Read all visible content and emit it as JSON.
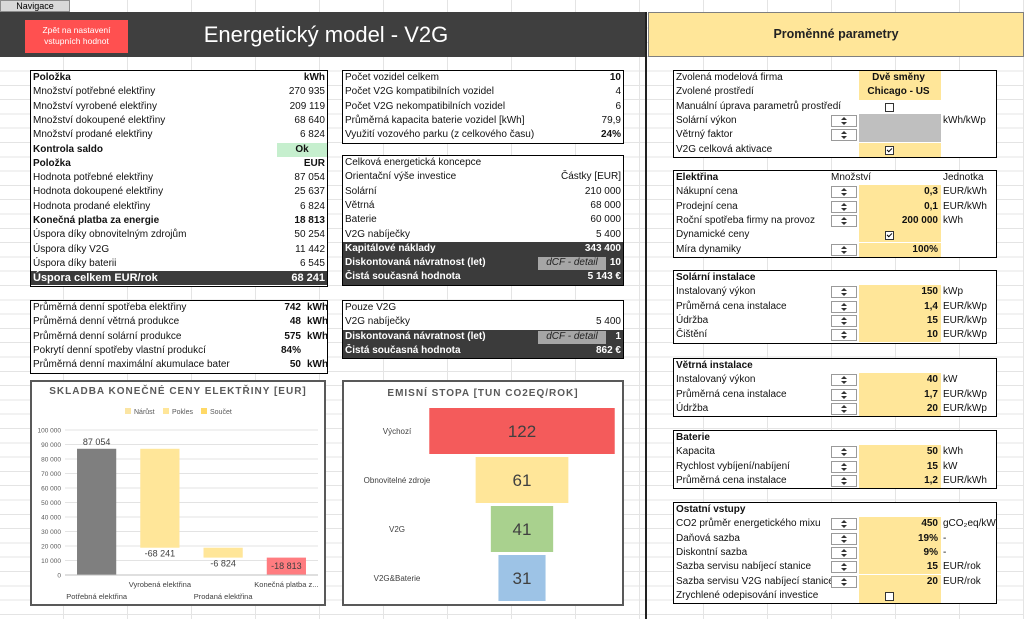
{
  "navigation": "Navigace",
  "header": {
    "back_button": "Zpět na nastavení vstupních hodnot",
    "title": "Energetický model - V2G"
  },
  "energy_table": [
    [
      "Položka",
      "kWh"
    ],
    [
      "Množství potřebné elektřiny",
      "270 935"
    ],
    [
      "Množství vyrobené elektřiny",
      "209 119"
    ],
    [
      "Množství dokoupené elektřiny",
      "68 640"
    ],
    [
      "Množství prodané elektřiny",
      "6 824"
    ],
    [
      "Kontrola saldo",
      "Ok"
    ],
    [
      "Položka",
      "EUR"
    ],
    [
      "Hodnota potřebné elektřiny",
      "87 054"
    ],
    [
      "Hodnota dokoupené elektřiny",
      "25 637"
    ],
    [
      "Hodnota prodané elektřiny",
      "6 824"
    ],
    [
      "Konečná platba za energie",
      "18 813"
    ],
    [
      "Úspora díky obnovitelným zdrojům",
      "50 254"
    ],
    [
      "Úspora díky V2G",
      "11 442"
    ],
    [
      "Úspora díky baterii",
      "6 545"
    ],
    [
      "Úspora celkem EUR/rok",
      "68 241"
    ]
  ],
  "fleet_table": [
    [
      "Počet vozidel celkem",
      "10"
    ],
    [
      "Počet V2G kompatibilních vozidel",
      "4"
    ],
    [
      "Počet V2G nekompatibilních vozidel",
      "6"
    ],
    [
      "Průměrná kapacita baterie vozidel [kWh]",
      "79,9"
    ],
    [
      "Využití vozového parku (z celkového času)",
      "24%"
    ]
  ],
  "investment_table": [
    [
      "Celková energetická koncepce"
    ],
    [
      "Orientační výše investice",
      "Částky [EUR]"
    ],
    [
      "Solární",
      "210 000"
    ],
    [
      "Větrná",
      "68 000"
    ],
    [
      "Baterie",
      "60 000"
    ],
    [
      "V2G nabíječky",
      "5 400"
    ],
    [
      "Kapitálové náklady",
      "343 400"
    ],
    [
      "Diskontovaná návratnost (let)",
      "dCF - detail",
      "10"
    ],
    [
      "Čistá současná hodnota",
      "5 143 €"
    ]
  ],
  "daily_table": [
    [
      "Průměrná denní spotřeba elektřiny",
      "742",
      "kWh"
    ],
    [
      "Průměrná denní větrná produkce",
      "48",
      "kWh"
    ],
    [
      "Průměrná denní solární produkce",
      "575",
      "kWh"
    ],
    [
      "Pokrytí denní spotřeby vlastní produkcí",
      "84%"
    ],
    [
      "Průměrná denní maximální akumulace bater",
      "50",
      "kWh"
    ]
  ],
  "v2g_table": [
    [
      "Pouze V2G"
    ],
    [
      "V2G nabíječky",
      "5 400"
    ],
    [
      "Diskontovaná návratnost (let)",
      "dCF - detail",
      "1"
    ],
    [
      "Čistá současná hodnota",
      "862 €"
    ]
  ],
  "chart_data": [
    {
      "type": "waterfall",
      "title": "SKLADBA KONEČNÉ CENY ELEKTŘINY [EUR]",
      "legend": [
        {
          "name": "Nárůst",
          "color": "#fbe5a3"
        },
        {
          "name": "Pokles",
          "color": "#ffe699"
        },
        {
          "name": "Součet",
          "color": "#ffd966"
        }
      ],
      "categories": [
        "Potřebná elektřina",
        "Vyrobená elektřina",
        "Prodaná elektřina",
        "Konečná platba z..."
      ],
      "values": [
        87054,
        -68241,
        -6824,
        -18813
      ],
      "value_labels": [
        "87 054",
        "-68 241",
        "-6 824",
        "-18 813"
      ],
      "colors": [
        "#7f7f7f",
        "#ffe699",
        "#ffe699",
        "#ff7c80"
      ],
      "ylim": [
        0,
        100000
      ],
      "yticks": [
        0,
        {
          "value": 10000,
          "label": "10 000"
        },
        {
          "value": 20000,
          "label": "20 000"
        },
        {
          "value": 30000,
          "label": "30 000"
        },
        {
          "value": 40000,
          "label": "40 000"
        },
        {
          "value": 50000,
          "label": "50 000"
        },
        {
          "value": 60000,
          "label": "60 000"
        },
        {
          "value": 70000,
          "label": "70 000"
        },
        {
          "value": 80000,
          "label": "80 000"
        },
        {
          "value": 90000,
          "label": "90 000"
        },
        {
          "value": 100000,
          "label": "100 000"
        }
      ],
      "grid": true
    },
    {
      "type": "funnel",
      "title": "EMISNÍ STOPA [TUN CO2EQ/ROK]",
      "categories": [
        "Výchozí",
        "Obnovitelné zdroje",
        "V2G",
        "V2G&Baterie"
      ],
      "values": [
        122,
        61,
        41,
        31
      ],
      "colors": [
        "#f45b5b",
        "#ffe699",
        "#a9d18e",
        "#9dc3e6"
      ]
    }
  ],
  "parameters": {
    "title": "Proměnné parametry",
    "sections": [
      {
        "rows": [
          {
            "label": "Zvolená modelová firma",
            "value": "Dvě směny"
          },
          {
            "label": "Zvolené prostředí",
            "value": "Chicago - US"
          },
          {
            "label": "Manuální úprava parametrů prostředí",
            "value": false
          },
          {
            "label": "Solární výkon",
            "unit": "kWh/kWp"
          },
          {
            "label": "Větrný faktor"
          },
          {
            "label": "V2G celková aktivace",
            "value": true
          }
        ]
      },
      {
        "title": "Elektřina",
        "columns": [
          "Množství",
          "Jednotka"
        ],
        "rows": [
          {
            "label": "Nákupní cena",
            "value": "0,3",
            "unit": "EUR/kWh"
          },
          {
            "label": "Prodejní cena",
            "value": "0,1",
            "unit": "EUR/kWh"
          },
          {
            "label": "Roční spotřeba firmy na provoz",
            "value": "200 000",
            "unit": "kWh"
          },
          {
            "label": "Dynamické ceny",
            "value": true
          },
          {
            "label": "Míra dynamiky",
            "value": "100%"
          }
        ]
      },
      {
        "title": "Solární instalace",
        "rows": [
          {
            "label": "Instalovaný výkon",
            "value": "150",
            "unit": "kWp"
          },
          {
            "label": "Průměrná cena instalace",
            "value": "1,4",
            "unit": "EUR/kWp"
          },
          {
            "label": "Údržba",
            "value": "15",
            "unit": "EUR/kWp"
          },
          {
            "label": "Čištění",
            "value": "10",
            "unit": "EUR/kWp"
          }
        ]
      },
      {
        "title": "Větrná instalace",
        "rows": [
          {
            "label": "Instalovaný výkon",
            "value": "40",
            "unit": "kW"
          },
          {
            "label": "Průměrná cena instalace",
            "value": "1,7",
            "unit": "EUR/kWp"
          },
          {
            "label": "Údržba",
            "value": "20",
            "unit": "EUR/kWp"
          }
        ]
      },
      {
        "title": "Baterie",
        "rows": [
          {
            "label": "Kapacita",
            "value": "50",
            "unit": "kWh"
          },
          {
            "label": "Rychlost vybíjení/nabíjení",
            "value": "15",
            "unit": "kW"
          },
          {
            "label": "Průměrná cena instalace",
            "value": "1,2",
            "unit": "EUR/kWh"
          }
        ]
      },
      {
        "title": "Ostatní vstupy",
        "rows": [
          {
            "label": "CO2 průměr energetického mixu",
            "value": "450",
            "unit": "gCO₂eq/kWh"
          },
          {
            "label": "Daňová sazba",
            "value": "19%",
            "unit": "-"
          },
          {
            "label": "Diskontní sazba",
            "value": "9%",
            "unit": "-"
          },
          {
            "label": "Sazba servisu nabíjecí stanice",
            "value": "15",
            "unit": "EUR/rok"
          },
          {
            "label": "Sazba servisu V2G nabíjecí stanice",
            "value": "20",
            "unit": "EUR/rok"
          },
          {
            "label": "Zrychlené odepisování investice",
            "value": false
          }
        ]
      }
    ]
  }
}
